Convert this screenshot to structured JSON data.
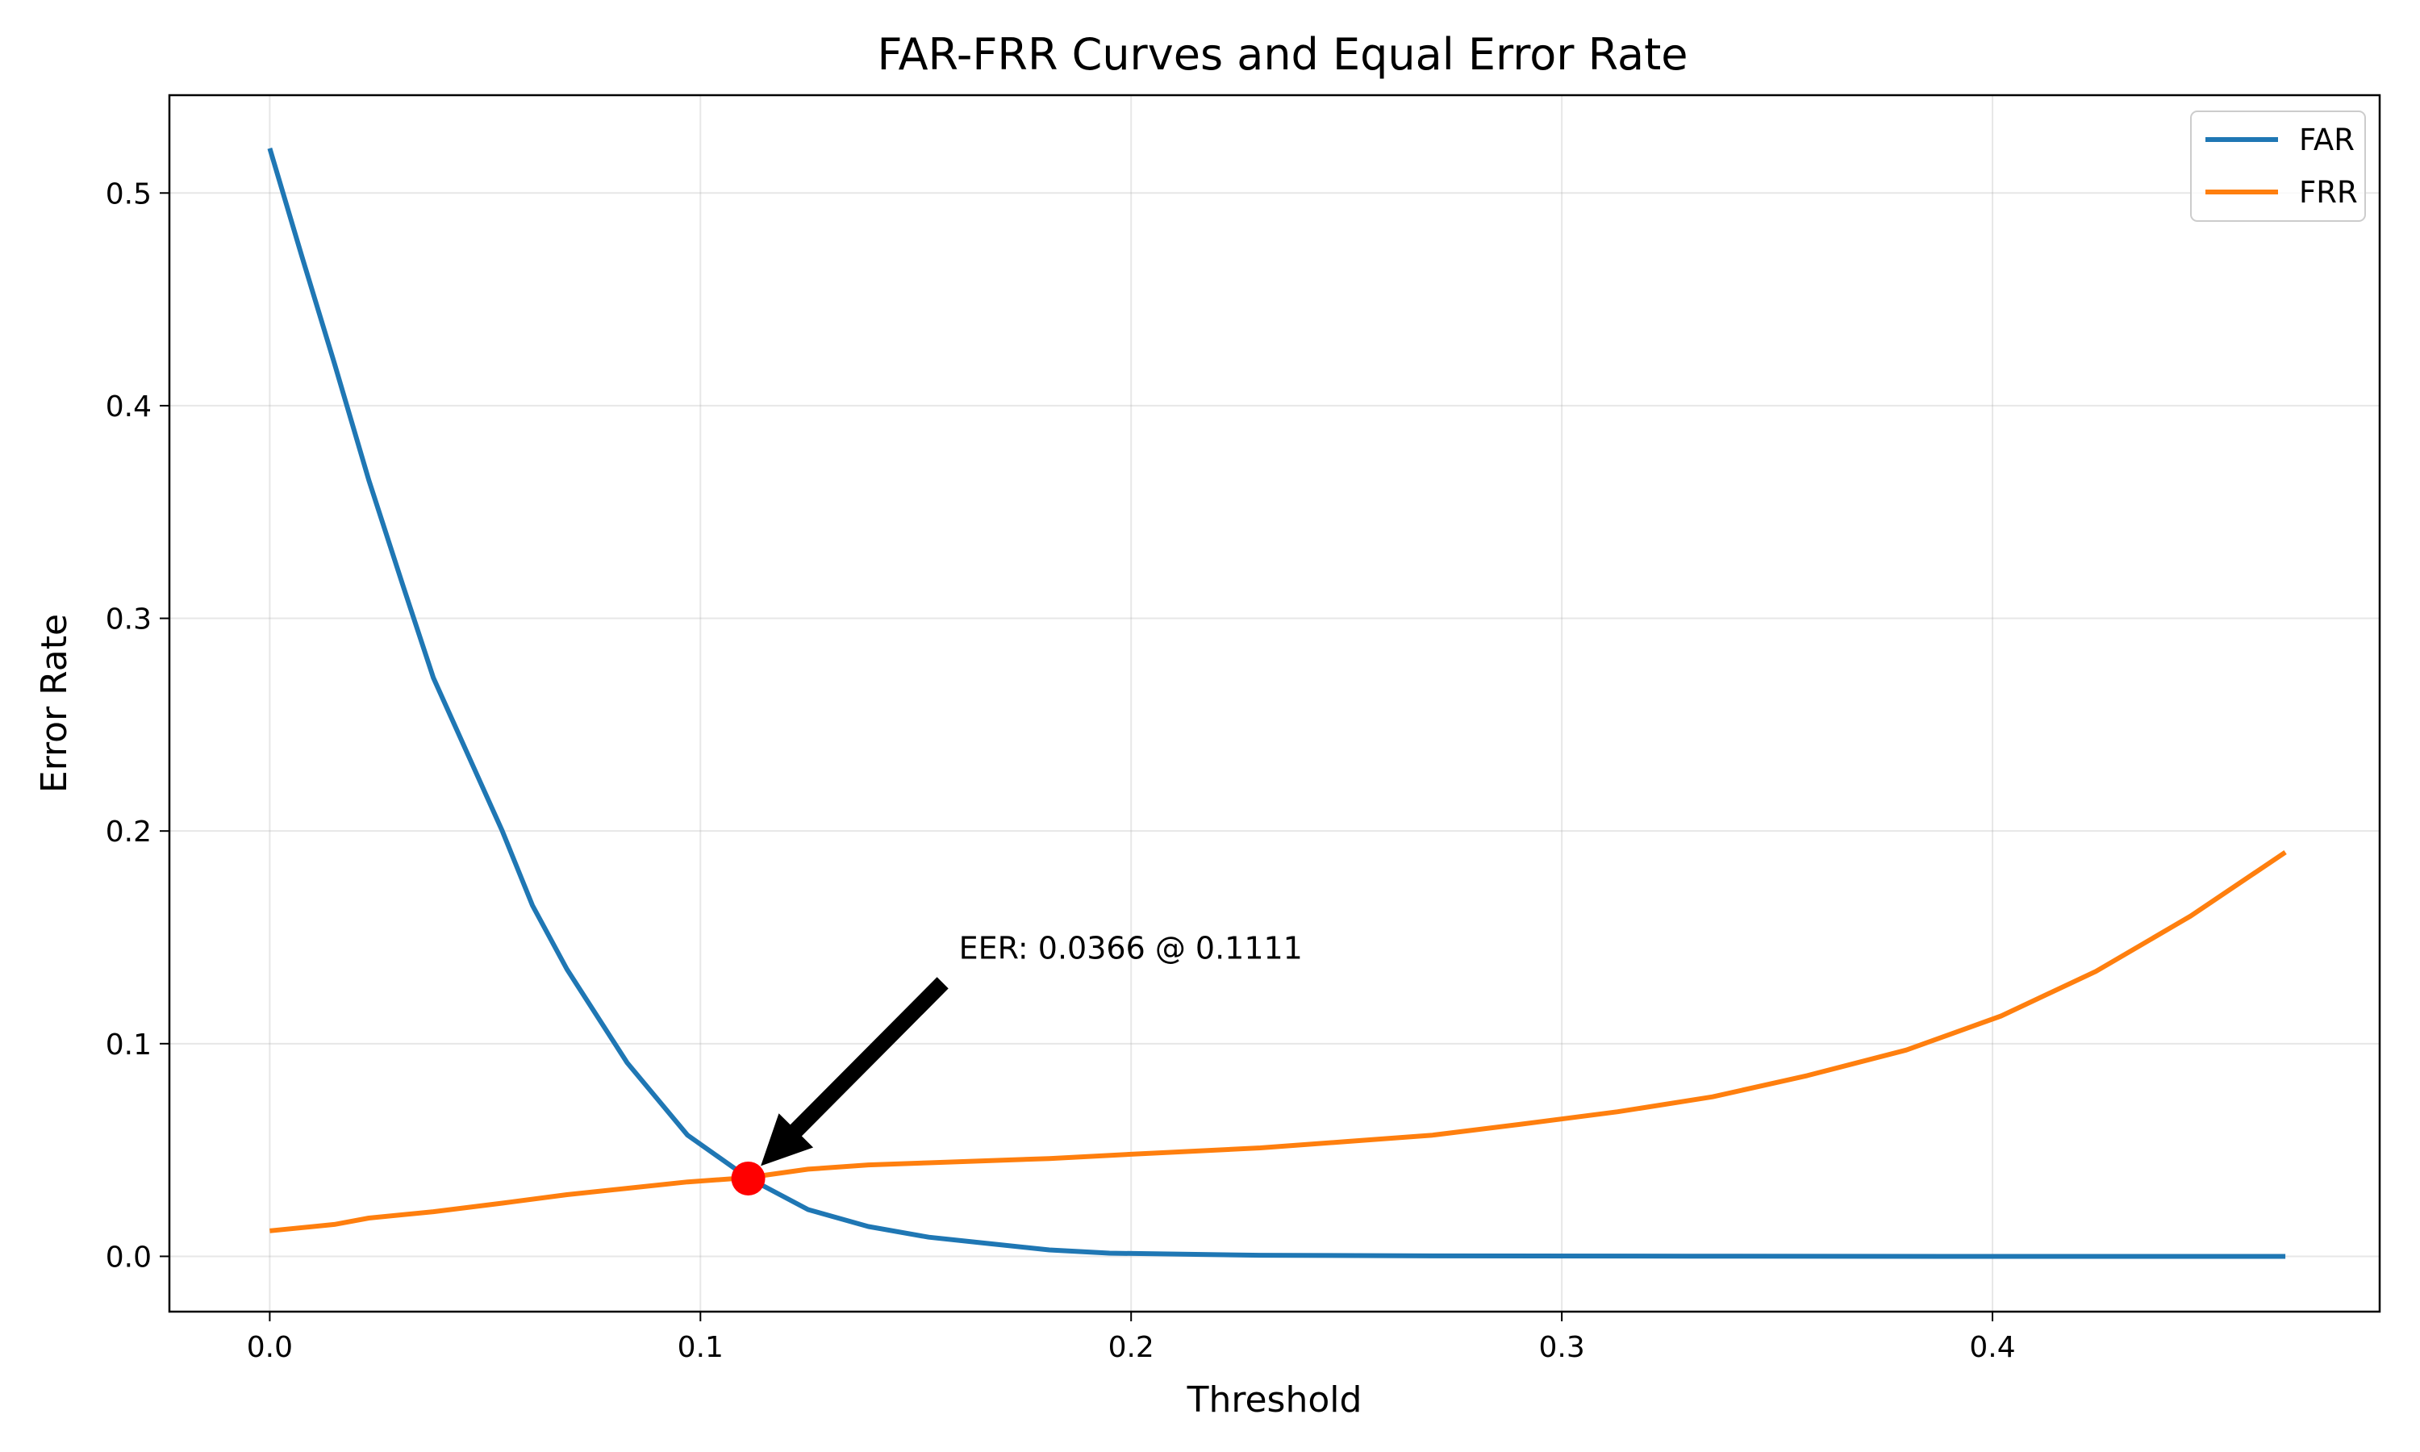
{
  "chart_data": {
    "type": "line",
    "title": "FAR-FRR Curves and Equal Error Rate",
    "xlabel": "Threshold",
    "ylabel": "Error Rate",
    "xlim": [
      -0.0233,
      0.4899
    ],
    "ylim": [
      -0.026,
      0.546
    ],
    "grid": true,
    "legend_position": "top-right",
    "x_ticks": [
      0.0,
      0.1,
      0.2,
      0.3,
      0.4
    ],
    "x_tick_labels": [
      "0.0",
      "0.1",
      "0.2",
      "0.3",
      "0.4"
    ],
    "y_ticks": [
      0.0,
      0.1,
      0.2,
      0.3,
      0.4,
      0.5
    ],
    "y_tick_labels": [
      "0.0",
      "0.1",
      "0.2",
      "0.3",
      "0.4",
      "0.5"
    ],
    "series": [
      {
        "name": "FAR",
        "color": "#1f77b4",
        "points": [
          [
            0.0,
            0.521
          ],
          [
            0.0075,
            0.47
          ],
          [
            0.015,
            0.42
          ],
          [
            0.023,
            0.365
          ],
          [
            0.031,
            0.315
          ],
          [
            0.038,
            0.272
          ],
          [
            0.046,
            0.236
          ],
          [
            0.054,
            0.2
          ],
          [
            0.061,
            0.165
          ],
          [
            0.069,
            0.135
          ],
          [
            0.083,
            0.091
          ],
          [
            0.097,
            0.057
          ],
          [
            0.111,
            0.037
          ],
          [
            0.125,
            0.022
          ],
          [
            0.139,
            0.014
          ],
          [
            0.153,
            0.009
          ],
          [
            0.167,
            0.006
          ],
          [
            0.181,
            0.003
          ],
          [
            0.195,
            0.0015
          ],
          [
            0.23,
            0.0005
          ],
          [
            0.27,
            0.0002
          ],
          [
            0.33,
            0.0001
          ],
          [
            0.4,
            0.0
          ],
          [
            0.468,
            0.0
          ]
        ]
      },
      {
        "name": "FRR",
        "color": "#ff7f0e",
        "points": [
          [
            0.0,
            0.012
          ],
          [
            0.015,
            0.015
          ],
          [
            0.023,
            0.018
          ],
          [
            0.038,
            0.021
          ],
          [
            0.054,
            0.025
          ],
          [
            0.069,
            0.029
          ],
          [
            0.083,
            0.032
          ],
          [
            0.097,
            0.035
          ],
          [
            0.111,
            0.037
          ],
          [
            0.125,
            0.041
          ],
          [
            0.139,
            0.043
          ],
          [
            0.153,
            0.044
          ],
          [
            0.181,
            0.046
          ],
          [
            0.2,
            0.048
          ],
          [
            0.23,
            0.051
          ],
          [
            0.25,
            0.054
          ],
          [
            0.27,
            0.057
          ],
          [
            0.29,
            0.062
          ],
          [
            0.313,
            0.068
          ],
          [
            0.335,
            0.075
          ],
          [
            0.357,
            0.085
          ],
          [
            0.38,
            0.097
          ],
          [
            0.402,
            0.113
          ],
          [
            0.424,
            0.134
          ],
          [
            0.446,
            0.16
          ],
          [
            0.468,
            0.19
          ]
        ]
      }
    ],
    "eer_point": {
      "x": 0.1111,
      "y": 0.0366,
      "color": "#ff0000"
    },
    "annotation": {
      "text": "EER: 0.0366 @ 0.1111",
      "text_x": 0.16,
      "text_y": 0.14,
      "arrow_to_x": 0.1111,
      "arrow_to_y": 0.0366
    }
  }
}
